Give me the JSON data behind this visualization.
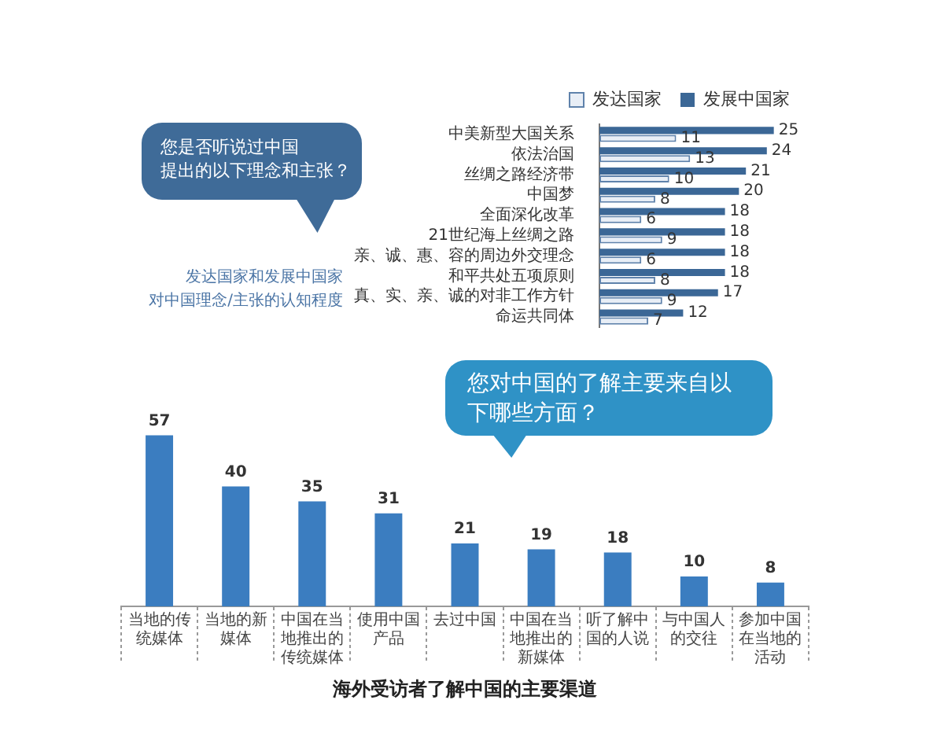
{
  "chart_data": [
    {
      "type": "bar",
      "orientation": "horizontal",
      "title": "发达国家和发展中国家对中国理念/主张的认知程度",
      "annotations": [
        "您是否听说过中国提出的以下理念和主张？"
      ],
      "categories": [
        "中美新型大国关系",
        "依法治国",
        "丝绸之路经济带",
        "中国梦",
        "全面深化改革",
        "21世纪海上丝绸之路",
        "亲、诚、惠、容的周边外交理念",
        "和平共处五项原则",
        "真、实、亲、诚的对非工作方针",
        "命运共同体"
      ],
      "series": [
        {
          "name": "发达国家",
          "color": "#e8eef6",
          "values": [
            11,
            13,
            10,
            8,
            6,
            9,
            6,
            8,
            9,
            7
          ]
        },
        {
          "name": "发展中国家",
          "color": "#3b6796",
          "values": [
            25,
            24,
            21,
            20,
            18,
            18,
            18,
            18,
            17,
            12
          ]
        }
      ],
      "data_labels": true,
      "legend": "top right"
    },
    {
      "type": "bar",
      "title": "海外受访者了解中国的主要渠道",
      "annotations": [
        "您对中国的了解主要来自以下哪些方面？"
      ],
      "categories": [
        "当地的传统媒体",
        "当地的新媒体",
        "中国在当地推出的传统媒体",
        "使用中国产品",
        "去过中国",
        "中国在当地推出的新媒体",
        "听了解中国的人说",
        "与中国人的交往",
        "参加中国在当地的活动"
      ],
      "values": [
        57,
        40,
        35,
        31,
        21,
        19,
        18,
        10,
        8
      ],
      "color": "#3b7dc0",
      "data_labels": true
    }
  ]
}
